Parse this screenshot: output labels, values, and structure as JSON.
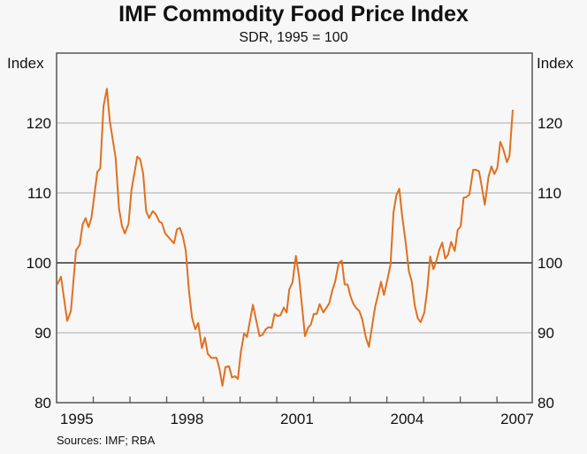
{
  "chart_data": {
    "type": "line",
    "title": "IMF Commodity Food Price Index",
    "subtitle": "SDR, 1995 = 100",
    "ylabel_left": "Index",
    "ylabel_right": "Index",
    "source": "Sources: IMF; RBA",
    "xlim": [
      1995.0,
      2007.96
    ],
    "ylim": [
      80,
      125
    ],
    "yticks": [
      80,
      90,
      100,
      110,
      120
    ],
    "xtick_labels": [
      "1995",
      "1998",
      "2001",
      "2004",
      "2007"
    ],
    "grid": true,
    "reference_line": 100,
    "line_color": "#e0701f",
    "series": [
      {
        "x": [
          1995.02,
          1995.12,
          1995.29,
          1995.39,
          1995.53,
          1995.63,
          1995.71,
          1995.79,
          1995.87,
          1995.95,
          1996.11,
          1996.19,
          1996.28,
          1996.37,
          1996.45,
          1996.61,
          1996.7,
          1996.78,
          1996.86,
          1996.96,
          1997.04,
          1997.2,
          1997.28,
          1997.36,
          1997.44,
          1997.52,
          1997.62,
          1997.7,
          1997.8,
          1997.87,
          1997.96,
          1998.2,
          1998.28,
          1998.36,
          1998.44,
          1998.52,
          1998.61,
          1998.69,
          1998.78,
          1998.86,
          1998.96,
          1999.04,
          1999.12,
          1999.22,
          1999.36,
          1999.44,
          1999.52,
          1999.6,
          1999.7,
          1999.78,
          1999.86,
          1999.94,
          2000.02,
          2000.11,
          2000.19,
          2000.35,
          2000.53,
          2000.61,
          2000.7,
          2000.78,
          2000.86,
          2000.94,
          2001.02,
          2001.1,
          2001.19,
          2001.27,
          2001.34,
          2001.43,
          2001.52,
          2001.61,
          2001.77,
          2001.85,
          2001.93,
          2002.01,
          2002.09,
          2002.17,
          2002.27,
          2002.43,
          2002.51,
          2002.59,
          2002.69,
          2002.77,
          2002.85,
          2002.93,
          2003.01,
          2003.09,
          2003.17,
          2003.25,
          2003.33,
          2003.43,
          2003.51,
          2003.6,
          2003.68,
          2003.76,
          2003.84,
          2003.92,
          2004.02,
          2004.1,
          2004.18,
          2004.26,
          2004.34,
          2004.42,
          2004.52,
          2004.6,
          2004.68,
          2004.76,
          2004.84,
          2004.92,
          2005.02,
          2005.1,
          2005.18,
          2005.27,
          2005.35,
          2005.43,
          2005.51,
          2005.59,
          2005.67,
          2005.75,
          2005.85,
          2005.93,
          2006.01,
          2006.09,
          2006.17,
          2006.25,
          2006.35,
          2006.43,
          2006.51,
          2006.59,
          2006.67,
          2006.77,
          2006.85,
          2006.93,
          2007.01,
          2007.09,
          2007.17,
          2007.27,
          2007.34,
          2007.43
        ],
        "y": [
          96.9,
          98.0,
          91.7,
          93.1,
          101.8,
          102.6,
          105.5,
          106.4,
          105.1,
          106.4,
          113.0,
          113.5,
          122.4,
          124.9,
          120.3,
          115.0,
          107.8,
          105.3,
          104.2,
          105.6,
          110.4,
          115.2,
          114.8,
          112.7,
          107.4,
          106.4,
          107.4,
          107.0,
          105.9,
          105.7,
          104.2,
          102.8,
          104.8,
          105.0,
          103.8,
          101.8,
          95.8,
          92.2,
          90.5,
          91.4,
          87.8,
          89.3,
          87.0,
          86.4,
          86.4,
          84.8,
          82.4,
          85.1,
          85.2,
          83.6,
          83.8,
          83.4,
          87.2,
          89.9,
          89.4,
          94.0,
          89.5,
          89.7,
          90.5,
          90.8,
          90.7,
          92.7,
          92.4,
          92.5,
          93.6,
          92.9,
          96.2,
          97.2,
          101.0,
          97.9,
          89.5,
          90.7,
          91.2,
          92.7,
          92.7,
          94.1,
          92.9,
          94.2,
          96.0,
          97.3,
          100.0,
          100.3,
          96.9,
          96.9,
          95.2,
          94.1,
          93.5,
          93.1,
          91.9,
          89.3,
          88.0,
          91.0,
          93.7,
          95.4,
          97.3,
          95.4,
          97.7,
          99.8,
          107.2,
          109.7,
          110.6,
          106.6,
          102.6,
          98.8,
          97.3,
          93.9,
          92.1,
          91.5,
          92.9,
          96.2,
          100.9,
          99.1,
          100.3,
          101.9,
          102.9,
          100.6,
          101.2,
          103.0,
          101.7,
          104.7,
          105.2,
          109.3,
          109.4,
          109.8,
          113.3,
          113.3,
          113.1,
          110.8,
          108.3,
          112.3,
          113.8,
          112.7,
          113.6,
          117.3,
          116.3,
          114.4,
          115.3,
          121.9
        ]
      }
    ]
  }
}
